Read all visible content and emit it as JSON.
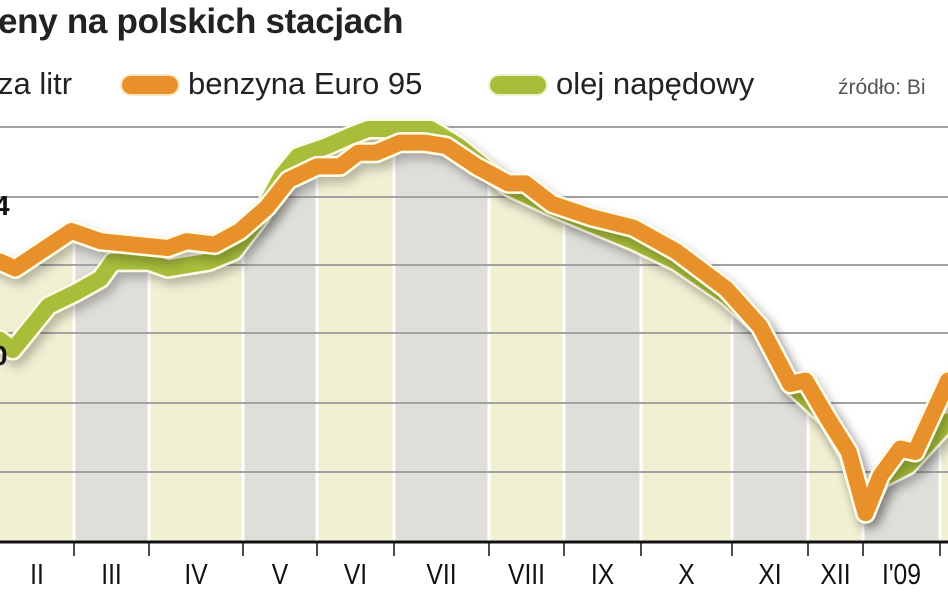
{
  "chart_data": {
    "type": "line",
    "title": "eny na polskich stacjach",
    "ylabel": "za litr",
    "source": "źródło: Bi",
    "y_tick_labels": [
      "4",
      "0"
    ],
    "x_tick_labels": [
      "II",
      "III",
      "IV",
      "V",
      "VI",
      "VII",
      "VIII",
      "IX",
      "X",
      "XI",
      "XII",
      "I'09"
    ],
    "grid": true,
    "legend_placement": "top",
    "series": [
      {
        "name": "benzyna Euro 95",
        "color": "#E8902A",
        "points": [
          [
            "2008-02-01",
            4.21
          ],
          [
            "2008-02-07",
            4.19
          ],
          [
            "2008-02-29",
            4.3
          ],
          [
            "2008-03-12",
            4.27
          ],
          [
            "2008-04-07",
            4.25
          ],
          [
            "2008-04-13",
            4.27
          ],
          [
            "2008-04-22",
            4.26
          ],
          [
            "2008-04-30",
            4.3
          ],
          [
            "2008-05-11",
            4.37
          ],
          [
            "2008-05-20",
            4.45
          ],
          [
            "2008-06-01",
            4.49
          ],
          [
            "2008-06-10",
            4.49
          ],
          [
            "2008-06-17",
            4.53
          ],
          [
            "2008-06-24",
            4.53
          ],
          [
            "2008-07-03",
            4.56
          ],
          [
            "2008-07-11",
            4.56
          ],
          [
            "2008-07-18",
            4.55
          ],
          [
            "2008-07-28",
            4.49
          ],
          [
            "2008-08-09",
            4.44
          ],
          [
            "2008-08-16",
            4.44
          ],
          [
            "2008-08-27",
            4.38
          ],
          [
            "2008-09-12",
            4.34
          ],
          [
            "2008-09-28",
            4.31
          ],
          [
            "2008-10-13",
            4.24
          ],
          [
            "2008-10-30",
            4.13
          ],
          [
            "2008-11-12",
            4.02
          ],
          [
            "2008-11-24",
            3.85
          ],
          [
            "2008-11-30",
            3.86
          ],
          [
            "2008-12-12",
            3.75
          ],
          [
            "2008-12-24",
            3.65
          ],
          [
            "2009-01-02",
            3.47
          ],
          [
            "2009-01-08",
            3.58
          ],
          [
            "2009-01-16",
            3.66
          ],
          [
            "2009-01-22",
            3.65
          ],
          [
            "2009-02-04",
            3.86
          ]
        ]
      },
      {
        "name": "olej napędowy",
        "color": "#A8BE3A",
        "points": [
          [
            "2008-02-01",
            3.98
          ],
          [
            "2008-02-06",
            3.95
          ],
          [
            "2008-02-20",
            4.08
          ],
          [
            "2008-03-02",
            4.12
          ],
          [
            "2008-03-12",
            4.16
          ],
          [
            "2008-03-17",
            4.21
          ],
          [
            "2008-04-01",
            4.21
          ],
          [
            "2008-04-07",
            4.19
          ],
          [
            "2008-04-20",
            4.21
          ],
          [
            "2008-04-28",
            4.24
          ],
          [
            "2008-05-08",
            4.34
          ],
          [
            "2008-05-17",
            4.46
          ],
          [
            "2008-05-24",
            4.52
          ],
          [
            "2008-06-05",
            4.55
          ],
          [
            "2008-06-14",
            4.58
          ],
          [
            "2008-06-21",
            4.6
          ],
          [
            "2008-07-13",
            4.6
          ],
          [
            "2008-07-22",
            4.55
          ],
          [
            "2008-08-09",
            4.43
          ],
          [
            "2008-08-27",
            4.37
          ],
          [
            "2008-09-12",
            4.32
          ],
          [
            "2008-09-28",
            4.27
          ],
          [
            "2008-10-13",
            4.21
          ],
          [
            "2008-10-30",
            4.11
          ],
          [
            "2008-11-12",
            4.02
          ],
          [
            "2008-11-24",
            3.85
          ],
          [
            "2008-12-12",
            3.75
          ],
          [
            "2008-12-24",
            3.64
          ],
          [
            "2009-01-02",
            3.48
          ],
          [
            "2009-01-08",
            3.57
          ],
          [
            "2009-01-19",
            3.61
          ],
          [
            "2009-02-04",
            3.74
          ]
        ]
      }
    ],
    "band_colors": [
      "#F1F0D3",
      "#DFDED9"
    ]
  }
}
